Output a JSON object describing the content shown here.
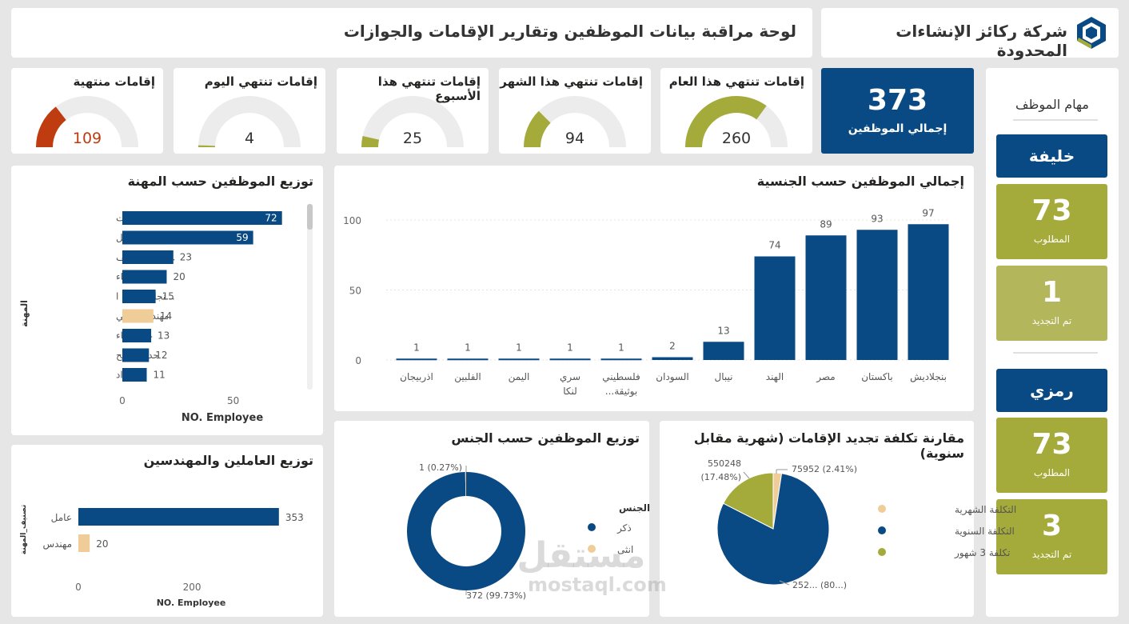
{
  "header": {
    "company": "شركة ركائز الإنشاءات المحدودة",
    "title": "لوحة مراقبة بيانات الموظفين وتقارير الإقامات والجوازات"
  },
  "colors": {
    "navy": "#0a4a84",
    "olive": "#a5ab3a",
    "olive_light": "#b3b65a",
    "beige": "#efcc98",
    "orange": "#bf3b10",
    "gauge_bg": "#ececec"
  },
  "kpi_total": {
    "value": "373",
    "label": "إجمالي الموظفين"
  },
  "gauges": [
    {
      "title": "إقامات تنتهي هذا العام",
      "value": "260",
      "fraction": 0.7,
      "color": "#a5ab3a"
    },
    {
      "title": "إقامات تنتهي هذا الشهر",
      "value": "94",
      "fraction": 0.25,
      "color": "#a5ab3a"
    },
    {
      "title": "إقامات تنتهي هذا الأسبوع",
      "value": "25",
      "fraction": 0.07,
      "color": "#a5ab3a"
    },
    {
      "title": "إقامات تنتهي اليوم",
      "value": "4",
      "fraction": 0.012,
      "color": "#a5ab3a"
    },
    {
      "title": "إقامات منتهية",
      "value": "109",
      "fraction": 0.29,
      "color": "#bf3b10"
    }
  ],
  "tasks": {
    "title": "مهام الموظف",
    "people": [
      {
        "name": "خليفة",
        "required_value": "73",
        "required_label": "المطلوب",
        "renewed_value": "1",
        "renewed_label": "تم التجديد"
      },
      {
        "name": "رمزي",
        "required_value": "73",
        "required_label": "المطلوب",
        "renewed_value": "3",
        "renewed_label": "تم التجديد"
      }
    ]
  },
  "watermark": {
    "text": "مستقل",
    "url": "mostaql.com"
  },
  "chart_data": [
    {
      "id": "profession",
      "type": "bar",
      "orientation": "horizontal",
      "title": "توزيع الموظفين حسب المهنة",
      "xlabel": "NO. Employee",
      "ylabel": "المهنة",
      "xlim": [
        0,
        75
      ],
      "xticks": [
        "0",
        "50"
      ],
      "categories": [
        "عامل انشاءات",
        "... عامل تحميل",
        "...عامل تنظيف",
        "بناء",
        "...نجار قوالب ا",
        "مهندس مدني",
        "عامل بناء",
        "حداد صفيح",
        "حداد"
      ],
      "values": [
        72,
        59,
        23,
        20,
        15,
        14,
        13,
        12,
        11
      ],
      "highlight_index": 5
    },
    {
      "id": "nationality",
      "type": "bar",
      "title": "إجمالي الموظفين حسب الجنسية",
      "ylim": [
        0,
        100
      ],
      "yticks": [
        "0",
        "50",
        "100"
      ],
      "categories": [
        "بنجلاديش",
        "باكستان",
        "مصر",
        "الهند",
        "نيبال",
        "السودان",
        "فلسطيني بوثيقة...",
        "سري لنكا",
        "اليمن",
        "الفلبين",
        "اذربيجان"
      ],
      "values": [
        97,
        93,
        89,
        74,
        13,
        2,
        1,
        1,
        1,
        1,
        1
      ]
    },
    {
      "id": "workers_engineers",
      "type": "bar",
      "orientation": "horizontal",
      "title": "توزيع العاملين والمهندسين",
      "xlabel": "NO. Employee",
      "ylabel": "تصنيف_المهنة",
      "xlim": [
        0,
        380
      ],
      "xticks": [
        "0",
        "200"
      ],
      "categories": [
        "عامل",
        "مهندس"
      ],
      "values": [
        353,
        20
      ]
    },
    {
      "id": "gender",
      "type": "pie",
      "title": "توزيع الموظفين حسب الجنس",
      "legend_title": "الجنس",
      "labels": [
        "ذكر",
        "انثى"
      ],
      "values": [
        372,
        1
      ],
      "data_labels": [
        "372 (99.73%)",
        "1 (0.27%)"
      ]
    },
    {
      "id": "cost",
      "type": "pie",
      "title": "مقارنة تكلفة تجديد الإقامات (شهرية مقابل سنوية)",
      "labels": [
        "التكلفة الشهرية",
        "التكلفة السنوية",
        "تكلفة 3 شهور"
      ],
      "values": [
        75952,
        2520000,
        550248
      ],
      "data_labels": [
        "75952 (2.41%)",
        "252... (80...)",
        "550248 (17.48%)"
      ]
    }
  ]
}
